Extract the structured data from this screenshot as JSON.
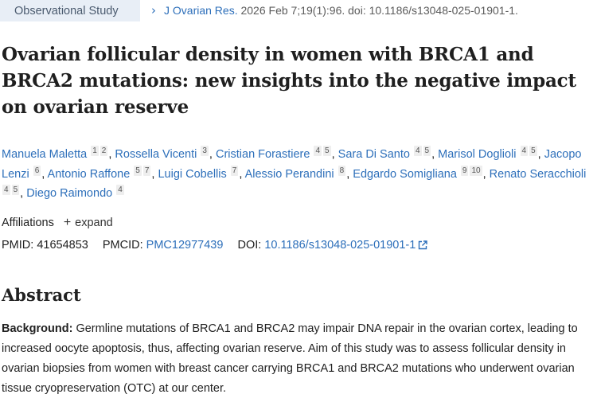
{
  "header": {
    "study_type": "Observational Study",
    "breadcrumb_icon": "chevron-right-icon",
    "journal": "J Ovarian Res.",
    "citation_rest": " 2026 Feb 7;19(1):96. doi: 10.1186/s13048-025-01901-1."
  },
  "article": {
    "title": "Ovarian follicular density in women with BRCA1 and BRCA2 mutations: new insights into the negative impact on ovarian reserve",
    "authors": [
      {
        "name": "Manuela Maletta",
        "affs": [
          "1",
          "2"
        ]
      },
      {
        "name": "Rossella Vicenti",
        "affs": [
          "3"
        ]
      },
      {
        "name": "Cristian Forastiere",
        "affs": [
          "4",
          "5"
        ]
      },
      {
        "name": "Sara Di Santo",
        "affs": [
          "4",
          "5"
        ]
      },
      {
        "name": "Marisol Doglioli",
        "affs": [
          "4",
          "5"
        ]
      },
      {
        "name": "Jacopo Lenzi",
        "affs": [
          "6"
        ]
      },
      {
        "name": "Antonio Raffone",
        "affs": [
          "5",
          "7"
        ]
      },
      {
        "name": "Luigi Cobellis",
        "affs": [
          "7"
        ]
      },
      {
        "name": "Alessio Perandini",
        "affs": [
          "8"
        ]
      },
      {
        "name": "Edgardo Somigliana",
        "affs": [
          "9",
          "10"
        ]
      },
      {
        "name": "Renato Seracchioli",
        "affs": [
          "4",
          "5"
        ]
      },
      {
        "name": "Diego Raimondo",
        "affs": [
          "4"
        ]
      }
    ],
    "affiliations_label": "Affiliations",
    "expand_label": "expand",
    "pmid_label": "PMID:",
    "pmid": "41654853",
    "pmcid_label": "PMCID:",
    "pmcid": "PMC12977439",
    "doi_label": "DOI:",
    "doi": "10.1186/s13048-025-01901-1"
  },
  "abstract": {
    "heading": "Abstract",
    "background_label": "Background:",
    "background_text": " Germline mutations of BRCA1 and BRCA2 may impair DNA repair in the ovarian cortex, leading to increased oocyte apoptosis, thus, affecting ovarian reserve. Aim of this study was to assess follicular density in ovarian biopsies from women with breast cancer carrying BRCA1 and BRCA2 mutations who underwent ovarian tissue cryopreservation (OTC) at our center."
  },
  "colors": {
    "link": "#2d6fba",
    "tag_bg": "#e8eef6"
  }
}
